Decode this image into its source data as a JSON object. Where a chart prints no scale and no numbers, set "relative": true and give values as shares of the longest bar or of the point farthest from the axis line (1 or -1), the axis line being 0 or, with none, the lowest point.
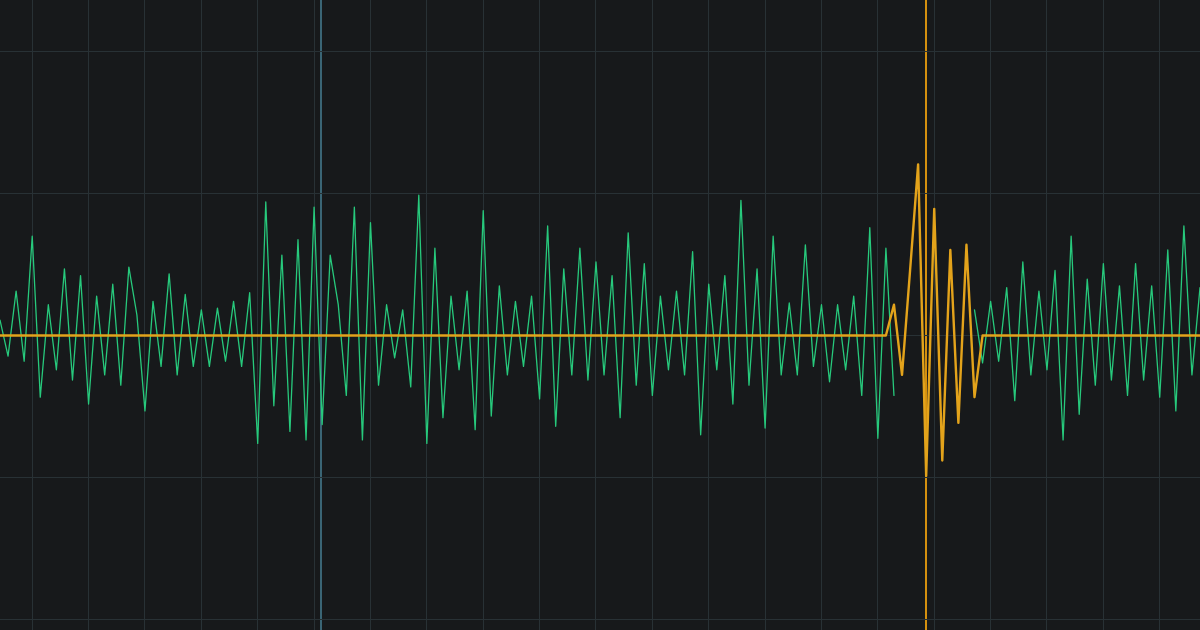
{
  "chart_data": {
    "type": "line",
    "relative": true,
    "grid": true,
    "tick_labels": false,
    "categories": [
      null,
      null,
      null,
      null,
      null,
      null,
      null,
      null,
      null,
      null,
      null,
      null,
      null,
      null,
      null,
      null,
      null,
      null,
      null,
      null,
      null,
      null,
      null,
      null,
      null,
      null,
      null,
      null,
      null,
      null,
      null,
      null,
      null,
      null,
      null,
      null,
      null,
      null,
      null,
      null,
      null,
      null,
      null,
      null,
      null,
      null,
      null,
      null,
      null,
      null,
      null,
      null,
      null,
      null,
      null,
      null,
      null,
      null,
      null,
      null,
      null,
      null,
      null,
      null,
      null,
      null,
      null,
      null,
      null,
      null,
      null,
      null,
      null,
      null,
      null,
      null,
      null,
      null,
      null,
      null,
      null,
      null,
      null,
      null,
      null,
      null,
      null,
      null,
      null,
      null,
      null,
      null,
      null,
      null,
      null,
      null,
      null,
      null,
      null,
      null,
      null,
      null,
      null,
      null,
      null,
      null,
      null,
      null,
      null,
      null,
      null,
      null,
      null,
      null,
      null,
      null,
      null,
      null,
      null,
      null,
      null,
      null,
      null,
      null,
      null,
      null,
      null,
      null,
      null,
      null,
      null,
      null,
      null,
      null,
      null,
      null,
      null,
      null,
      null,
      null,
      null,
      null,
      null,
      null,
      null,
      null,
      null,
      null,
      null,
      null
    ],
    "series": [
      {
        "color": "#27c97c",
        "values": [
          0.09,
          -0.12,
          0.26,
          -0.15,
          0.58,
          -0.36,
          0.18,
          -0.2,
          0.39,
          -0.26,
          0.35,
          -0.4,
          0.23,
          -0.23,
          0.3,
          -0.29,
          0.4,
          0.12,
          -0.44,
          0.2,
          -0.18,
          0.36,
          -0.23,
          0.24,
          -0.18,
          0.15,
          -0.18,
          0.16,
          -0.15,
          0.2,
          -0.18,
          0.25,
          -0.63,
          0.78,
          -0.41,
          0.47,
          -0.56,
          0.56,
          -0.61,
          0.75,
          -0.52,
          0.47,
          0.18,
          -0.35,
          0.75,
          -0.61,
          0.66,
          -0.29,
          0.18,
          -0.13,
          0.15,
          -0.3,
          0.82,
          -0.63,
          0.51,
          -0.48,
          0.23,
          -0.2,
          0.26,
          -0.55,
          0.73,
          -0.47,
          0.29,
          -0.23,
          0.2,
          -0.18,
          0.23,
          -0.37,
          0.64,
          -0.53,
          0.39,
          -0.23,
          0.51,
          -0.26,
          0.43,
          -0.23,
          0.35,
          -0.48,
          0.6,
          -0.29,
          0.42,
          -0.35,
          0.23,
          -0.2,
          0.26,
          -0.23,
          0.49,
          -0.58,
          0.3,
          -0.2,
          0.35,
          -0.4,
          0.79,
          -0.29,
          0.39,
          -0.54,
          0.58,
          -0.23,
          0.19,
          -0.23,
          0.53,
          -0.18,
          0.18,
          -0.27,
          0.18,
          -0.2,
          0.23,
          -0.35,
          0.63,
          -0.6,
          0.51,
          -0.35,
          null,
          null,
          null,
          null,
          null,
          null,
          null,
          null,
          null,
          0.15,
          -0.16,
          0.2,
          -0.15,
          0.28,
          -0.38,
          0.43,
          -0.23,
          0.26,
          -0.2,
          0.38,
          -0.61,
          0.58,
          -0.46,
          0.33,
          -0.29,
          0.42,
          -0.26,
          0.29,
          -0.35,
          0.42,
          -0.26,
          0.29,
          -0.36,
          0.5,
          -0.44,
          0.64,
          -0.23,
          0.28
        ]
      },
      {
        "color": "#e3a31b",
        "values": [
          0,
          0,
          0,
          0,
          0,
          0,
          0,
          0,
          0,
          0,
          0,
          0,
          0,
          0,
          0,
          0,
          0,
          0,
          0,
          0,
          0,
          0,
          0,
          0,
          0,
          0,
          0,
          0,
          0,
          0,
          0,
          0,
          0,
          0,
          0,
          0,
          0,
          0,
          0,
          0,
          0,
          0,
          0,
          0,
          0,
          0,
          0,
          0,
          0,
          0,
          0,
          0,
          0,
          0,
          0,
          0,
          0,
          0,
          0,
          0,
          0,
          0,
          0,
          0,
          0,
          0,
          0,
          0,
          0,
          0,
          0,
          0,
          0,
          0,
          0,
          0,
          0,
          0,
          0,
          0,
          0,
          0,
          0,
          0,
          0,
          0,
          0,
          0,
          0,
          0,
          0,
          0,
          0,
          0,
          0,
          0,
          0,
          0,
          0,
          0,
          0,
          0,
          0,
          0,
          0,
          0,
          0,
          0,
          0,
          0,
          0,
          0.18,
          -0.23,
          0.38,
          1,
          -0.82,
          0.74,
          -0.73,
          0.5,
          -0.51,
          0.53,
          -0.36,
          0,
          0,
          0,
          0,
          0,
          0,
          0,
          0,
          0,
          0,
          0,
          0,
          0,
          0,
          0,
          0,
          0,
          0,
          0,
          0,
          0,
          0,
          0,
          0,
          0,
          0,
          0,
          0
        ]
      }
    ]
  }
}
